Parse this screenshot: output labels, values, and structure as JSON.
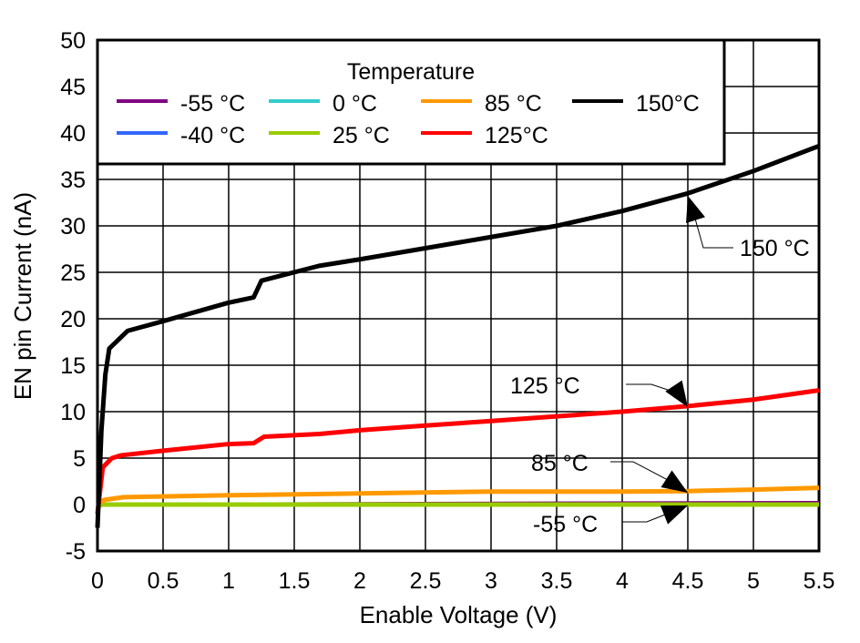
{
  "chart_data": {
    "type": "line",
    "title": "",
    "xlabel": "Enable Voltage (V)",
    "ylabel": "EN pin Current (nA)",
    "xlim": [
      0,
      5.5
    ],
    "ylim": [
      -5,
      50
    ],
    "xticks": [
      0,
      0.5,
      1,
      1.5,
      2,
      2.5,
      3,
      3.5,
      4,
      4.5,
      5,
      5.5
    ],
    "xtick_labels": [
      "0",
      "0.5",
      "1",
      "1.5",
      "2",
      "2.5",
      "3",
      "3.5",
      "4",
      "4.5",
      "5",
      "5.5"
    ],
    "yticks": [
      -5,
      0,
      5,
      10,
      15,
      20,
      25,
      30,
      35,
      40,
      45,
      50
    ],
    "ytick_labels": [
      "-5",
      "0",
      "5",
      "10",
      "15",
      "20",
      "25",
      "30",
      "35",
      "40",
      "45",
      "50"
    ],
    "grid": true,
    "legend": {
      "title": "Temperature",
      "placement": "top"
    },
    "series": [
      {
        "name": "-55 °C",
        "color": "#800080",
        "x": [
          0,
          0.05,
          3.8,
          5.5
        ],
        "y": [
          0,
          0.1,
          0.25,
          0.3
        ]
      },
      {
        "name": "-40 °C",
        "color": "#3366ff",
        "x": [
          0,
          5.5
        ],
        "y": [
          0,
          0
        ]
      },
      {
        "name": "0 °C",
        "color": "#33cccc",
        "x": [
          0,
          5.5
        ],
        "y": [
          0,
          0
        ]
      },
      {
        "name": "25 °C",
        "color": "#99cc00",
        "x": [
          0,
          0.03,
          5.5
        ],
        "y": [
          -0.3,
          0,
          0
        ]
      },
      {
        "name": "85 °C",
        "color": "#ff9900",
        "x": [
          0,
          0.05,
          0.2,
          1,
          2,
          3,
          4,
          4.5,
          5,
          5.5
        ],
        "y": [
          0,
          0.5,
          0.8,
          1.0,
          1.2,
          1.4,
          1.4,
          1.45,
          1.6,
          1.8
        ]
      },
      {
        "name": "125°C",
        "color": "#ff0000",
        "x": [
          0,
          0.04,
          0.11,
          0.18,
          0.5,
          0.99,
          1.19,
          1.27,
          1.69,
          2,
          2.5,
          3,
          3.5,
          4,
          4.5,
          5,
          5.5
        ],
        "y": [
          -1,
          4,
          5,
          5.3,
          5.8,
          6.5,
          6.6,
          7.3,
          7.6,
          8.0,
          8.5,
          9.0,
          9.5,
          10.0,
          10.6,
          11.3,
          12.3
        ]
      },
      {
        "name": "150°C",
        "color": "#000000",
        "x": [
          0,
          0.03,
          0.06,
          0.09,
          0.23,
          0.49,
          0.99,
          1.19,
          1.25,
          1.69,
          2,
          2.5,
          3,
          3.5,
          4,
          4.5,
          5,
          5.5
        ],
        "y": [
          -2.5,
          8,
          14,
          16.8,
          18.7,
          19.7,
          21.7,
          22.3,
          24.1,
          25.7,
          26.4,
          27.6,
          28.8,
          30.0,
          31.6,
          33.5,
          35.9,
          38.6
        ]
      }
    ],
    "annotations": [
      {
        "text": "150 °C",
        "target": [
          4.5,
          33.5
        ]
      },
      {
        "text": "125 °C",
        "target": [
          4.5,
          10.6
        ]
      },
      {
        "text": "85 °C",
        "target": [
          4.5,
          1.45
        ]
      },
      {
        "text": "-55 °C",
        "target": [
          4.5,
          0.2
        ]
      }
    ]
  }
}
